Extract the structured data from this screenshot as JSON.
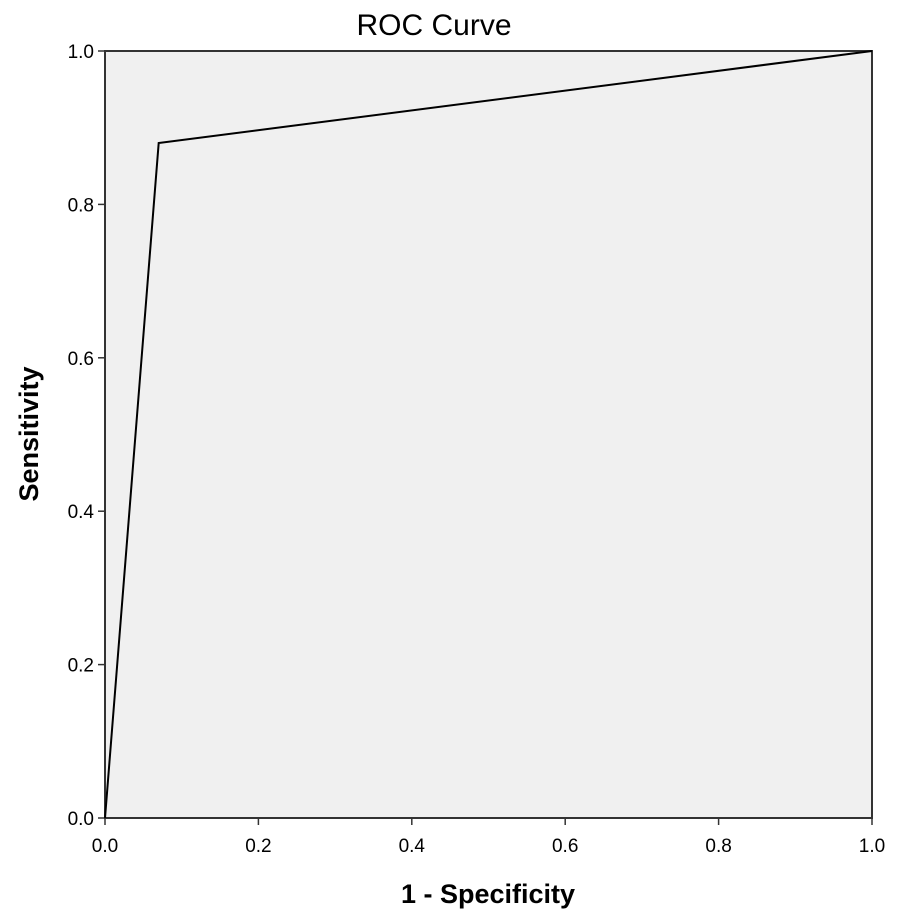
{
  "chart_data": {
    "type": "line",
    "title": "ROC Curve",
    "xlabel": "1 - Specificity",
    "ylabel": "Sensitivity",
    "xlim": [
      0.0,
      1.0
    ],
    "ylim": [
      0.0,
      1.0
    ],
    "x_ticks": [
      "0.0",
      "0.2",
      "0.4",
      "0.6",
      "0.8",
      "1.0"
    ],
    "y_ticks": [
      "0.0",
      "0.2",
      "0.4",
      "0.6",
      "0.8",
      "1.0"
    ],
    "grid": false,
    "legend": "none",
    "plot_background": "#f0f0f0",
    "line_color": "#000000",
    "series": [
      {
        "x": [
          0.0,
          0.07,
          1.0
        ],
        "y": [
          0.0,
          0.88,
          1.0
        ]
      }
    ]
  }
}
